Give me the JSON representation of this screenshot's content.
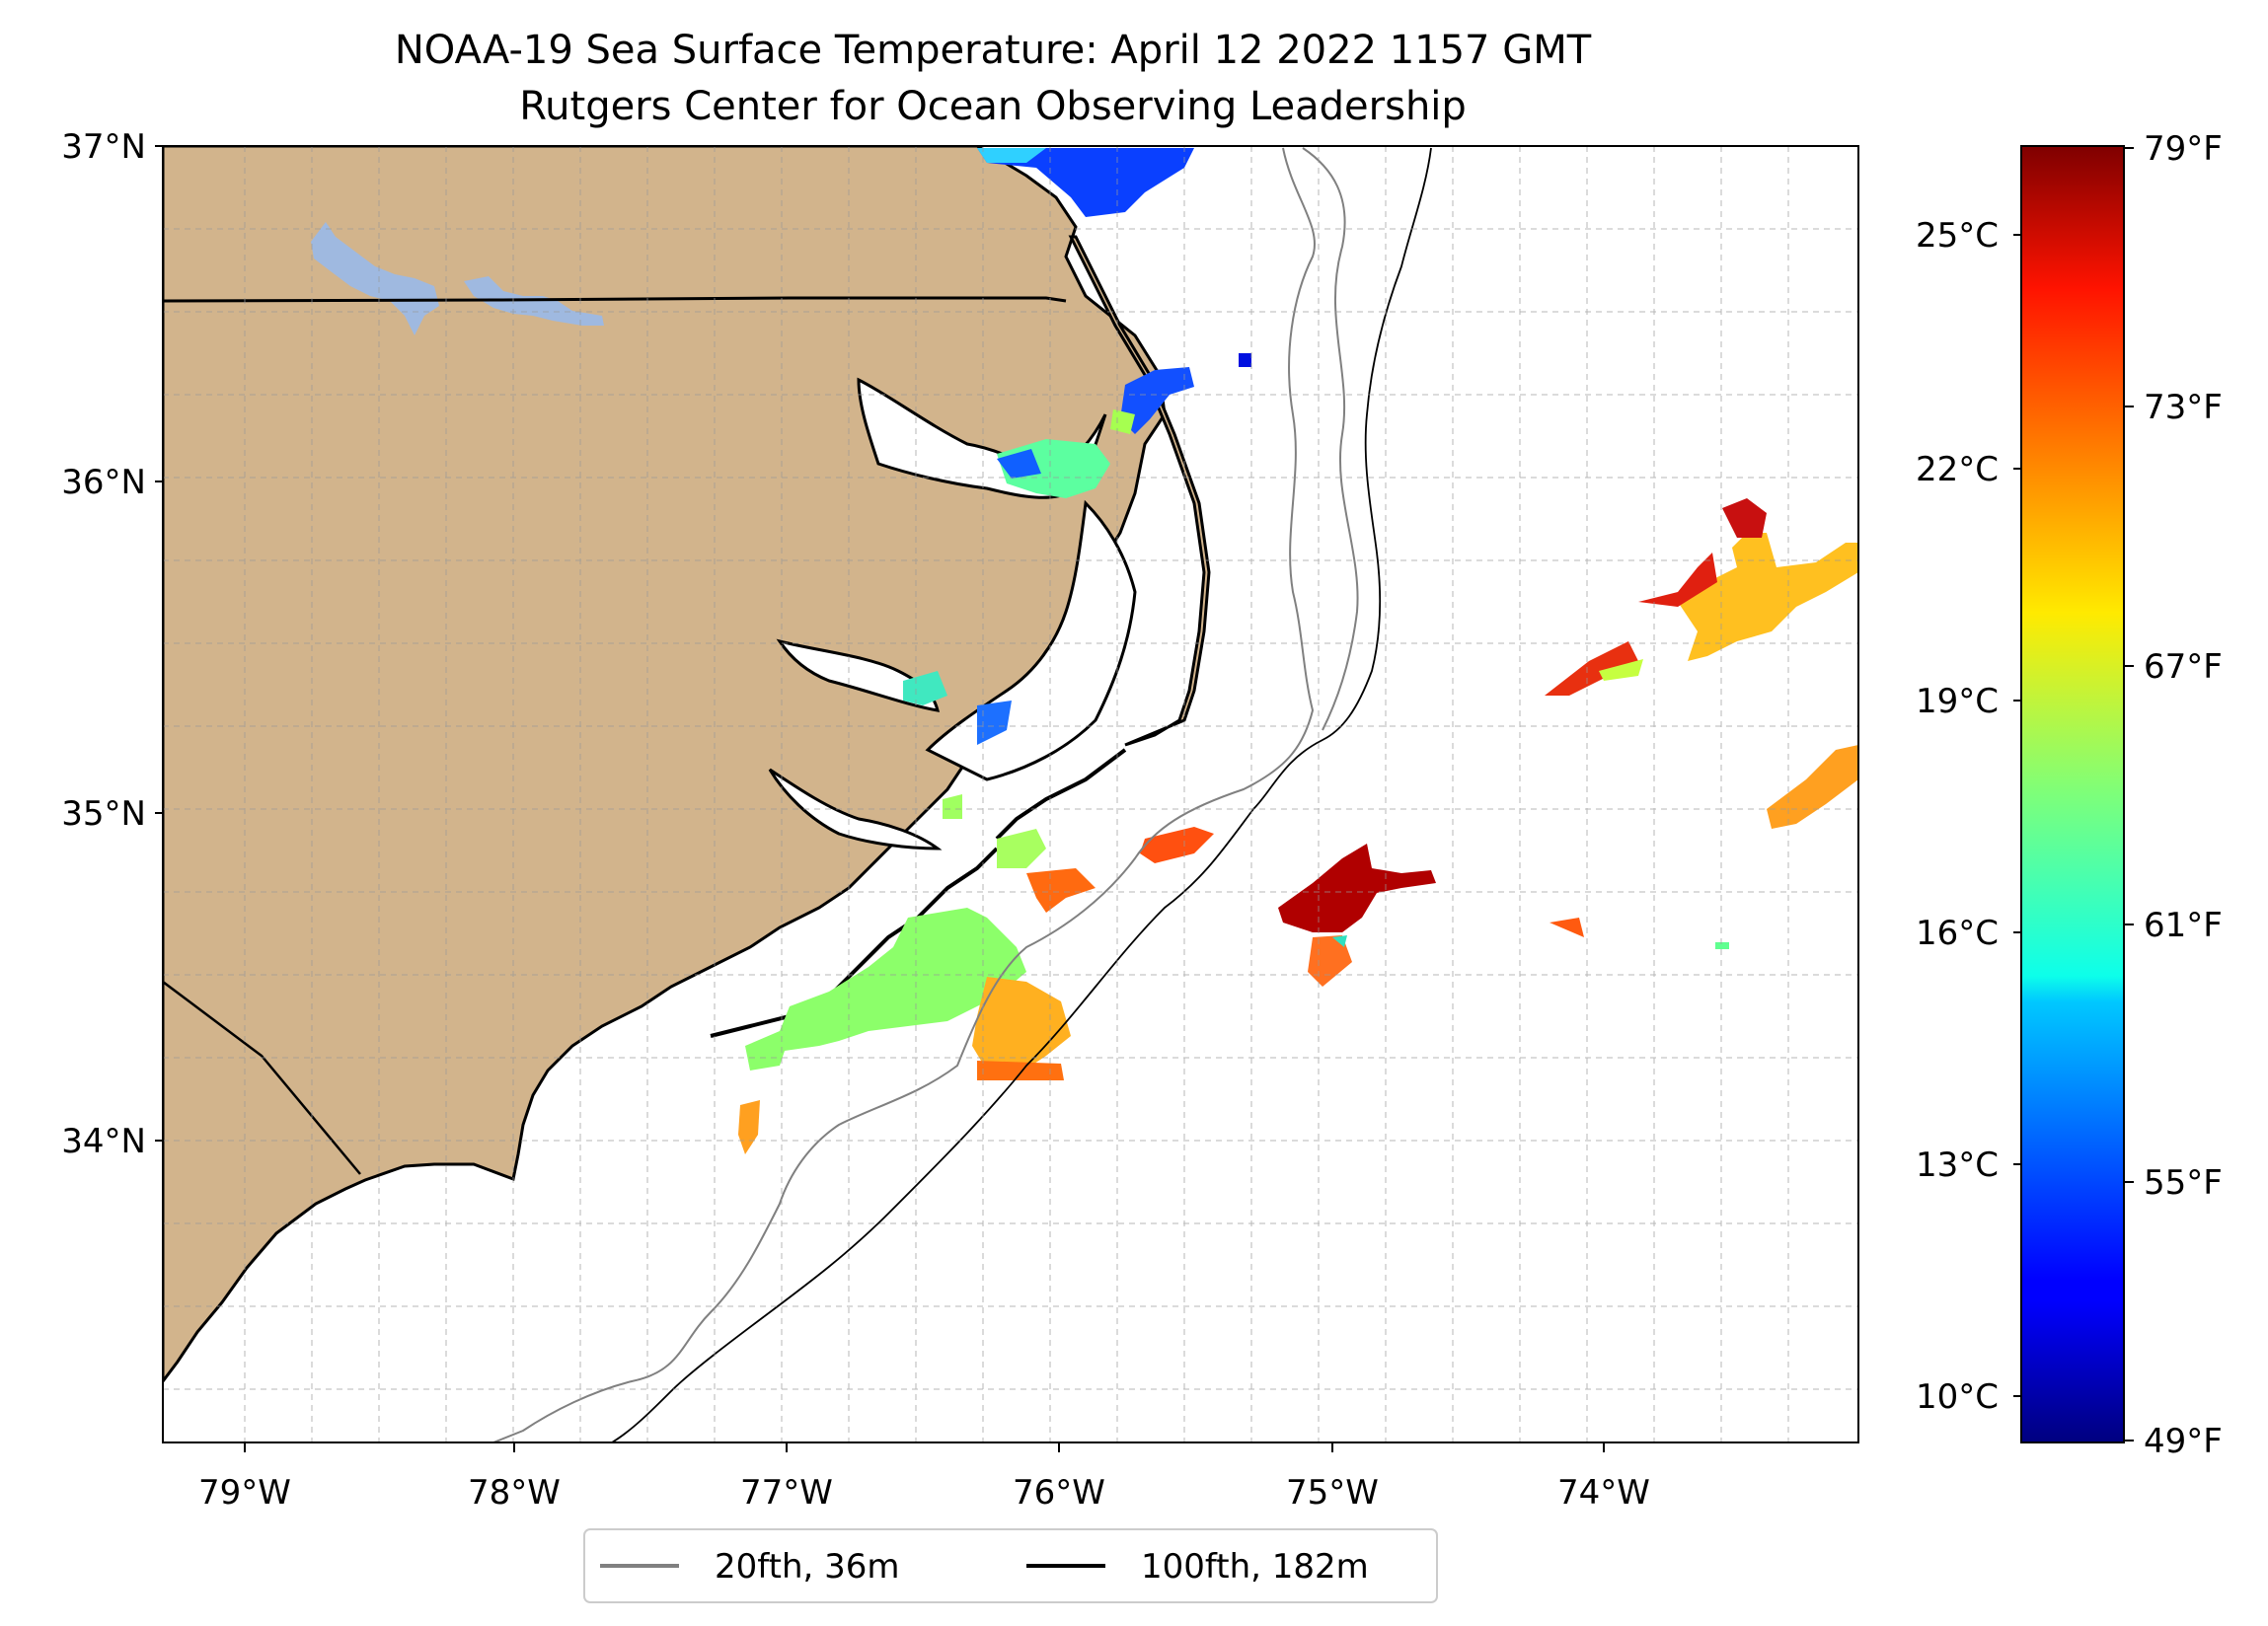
{
  "title": {
    "line1": "NOAA-19 Sea Surface Temperature: April 12 2022 1157 GMT",
    "line2": "Rutgers Center for Ocean Observing Leadership"
  },
  "map": {
    "lat_labels": [
      "37°N",
      "36°N",
      "35°N",
      "34°N"
    ],
    "lon_labels": [
      "79°W",
      "78°W",
      "77°W",
      "76°W",
      "75°W",
      "74°W"
    ],
    "land_color": "#d2b48c",
    "lake_color": "#9fb9e0",
    "gridlines": "dashed"
  },
  "colorbar": {
    "colormap": "jet",
    "celsius_labels": [
      "25°C",
      "22°C",
      "19°C",
      "16°C",
      "13°C",
      "10°C"
    ],
    "fahrenheit_labels": [
      "79°F",
      "73°F",
      "67°F",
      "61°F",
      "55°F",
      "49°F"
    ]
  },
  "legend": {
    "items": [
      {
        "label": "20fth, 36m",
        "color": "#808080"
      },
      {
        "label": "100fth, 182m",
        "color": "#000000"
      }
    ]
  }
}
